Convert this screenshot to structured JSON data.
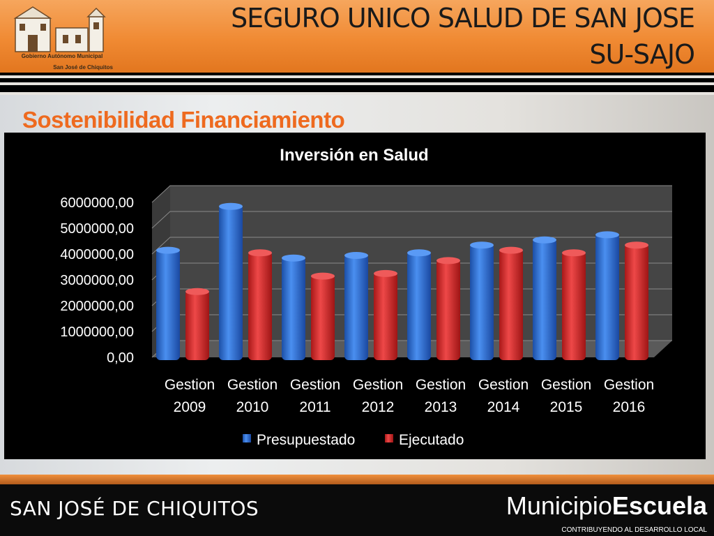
{
  "header": {
    "title_line1": "SEGURO UNICO SALUD DE SAN JOSE",
    "title_line2": "SU-SAJO",
    "logo_line1": "Gobierno Autónomo Municipal",
    "logo_line2": "San José de Chiquitos"
  },
  "subtitle": "Sostenibilidad Financiamiento",
  "colors": {
    "accent": "#ee6a1f",
    "presupuestado": "#2f6fd0",
    "ejecutado": "#d42a2a"
  },
  "chart_data": {
    "type": "bar",
    "title": "Inversión en Salud",
    "categories": [
      [
        "Gestion",
        "2009"
      ],
      [
        "Gestion",
        "2010"
      ],
      [
        "Gestion",
        "2011"
      ],
      [
        "Gestion",
        "2012"
      ],
      [
        "Gestion",
        "2013"
      ],
      [
        "Gestion",
        "2014"
      ],
      [
        "Gestion",
        "2015"
      ],
      [
        "Gestion",
        "2016"
      ]
    ],
    "series": [
      {
        "name": "Presupuestado",
        "values": [
          4200000,
          5900000,
          3900000,
          4000000,
          4100000,
          4400000,
          4600000,
          4800000
        ]
      },
      {
        "name": "Ejecutado",
        "values": [
          2600000,
          4100000,
          3200000,
          3300000,
          3800000,
          4200000,
          4100000,
          4400000
        ]
      }
    ],
    "yticks": [
      "0,00",
      "1000000,00",
      "2000000,00",
      "3000000,00",
      "4000000,00",
      "5000000,00",
      "6000000,00"
    ],
    "ylim": [
      0,
      6000000
    ],
    "grid": true,
    "legend": "bottom"
  },
  "footer": {
    "left": "SAN JOSÉ DE CHIQUITOS",
    "brand_light": "Municipio",
    "brand_bold": "Escuela",
    "tagline": "CONTRIBUYENDO AL DESARROLLO LOCAL"
  }
}
